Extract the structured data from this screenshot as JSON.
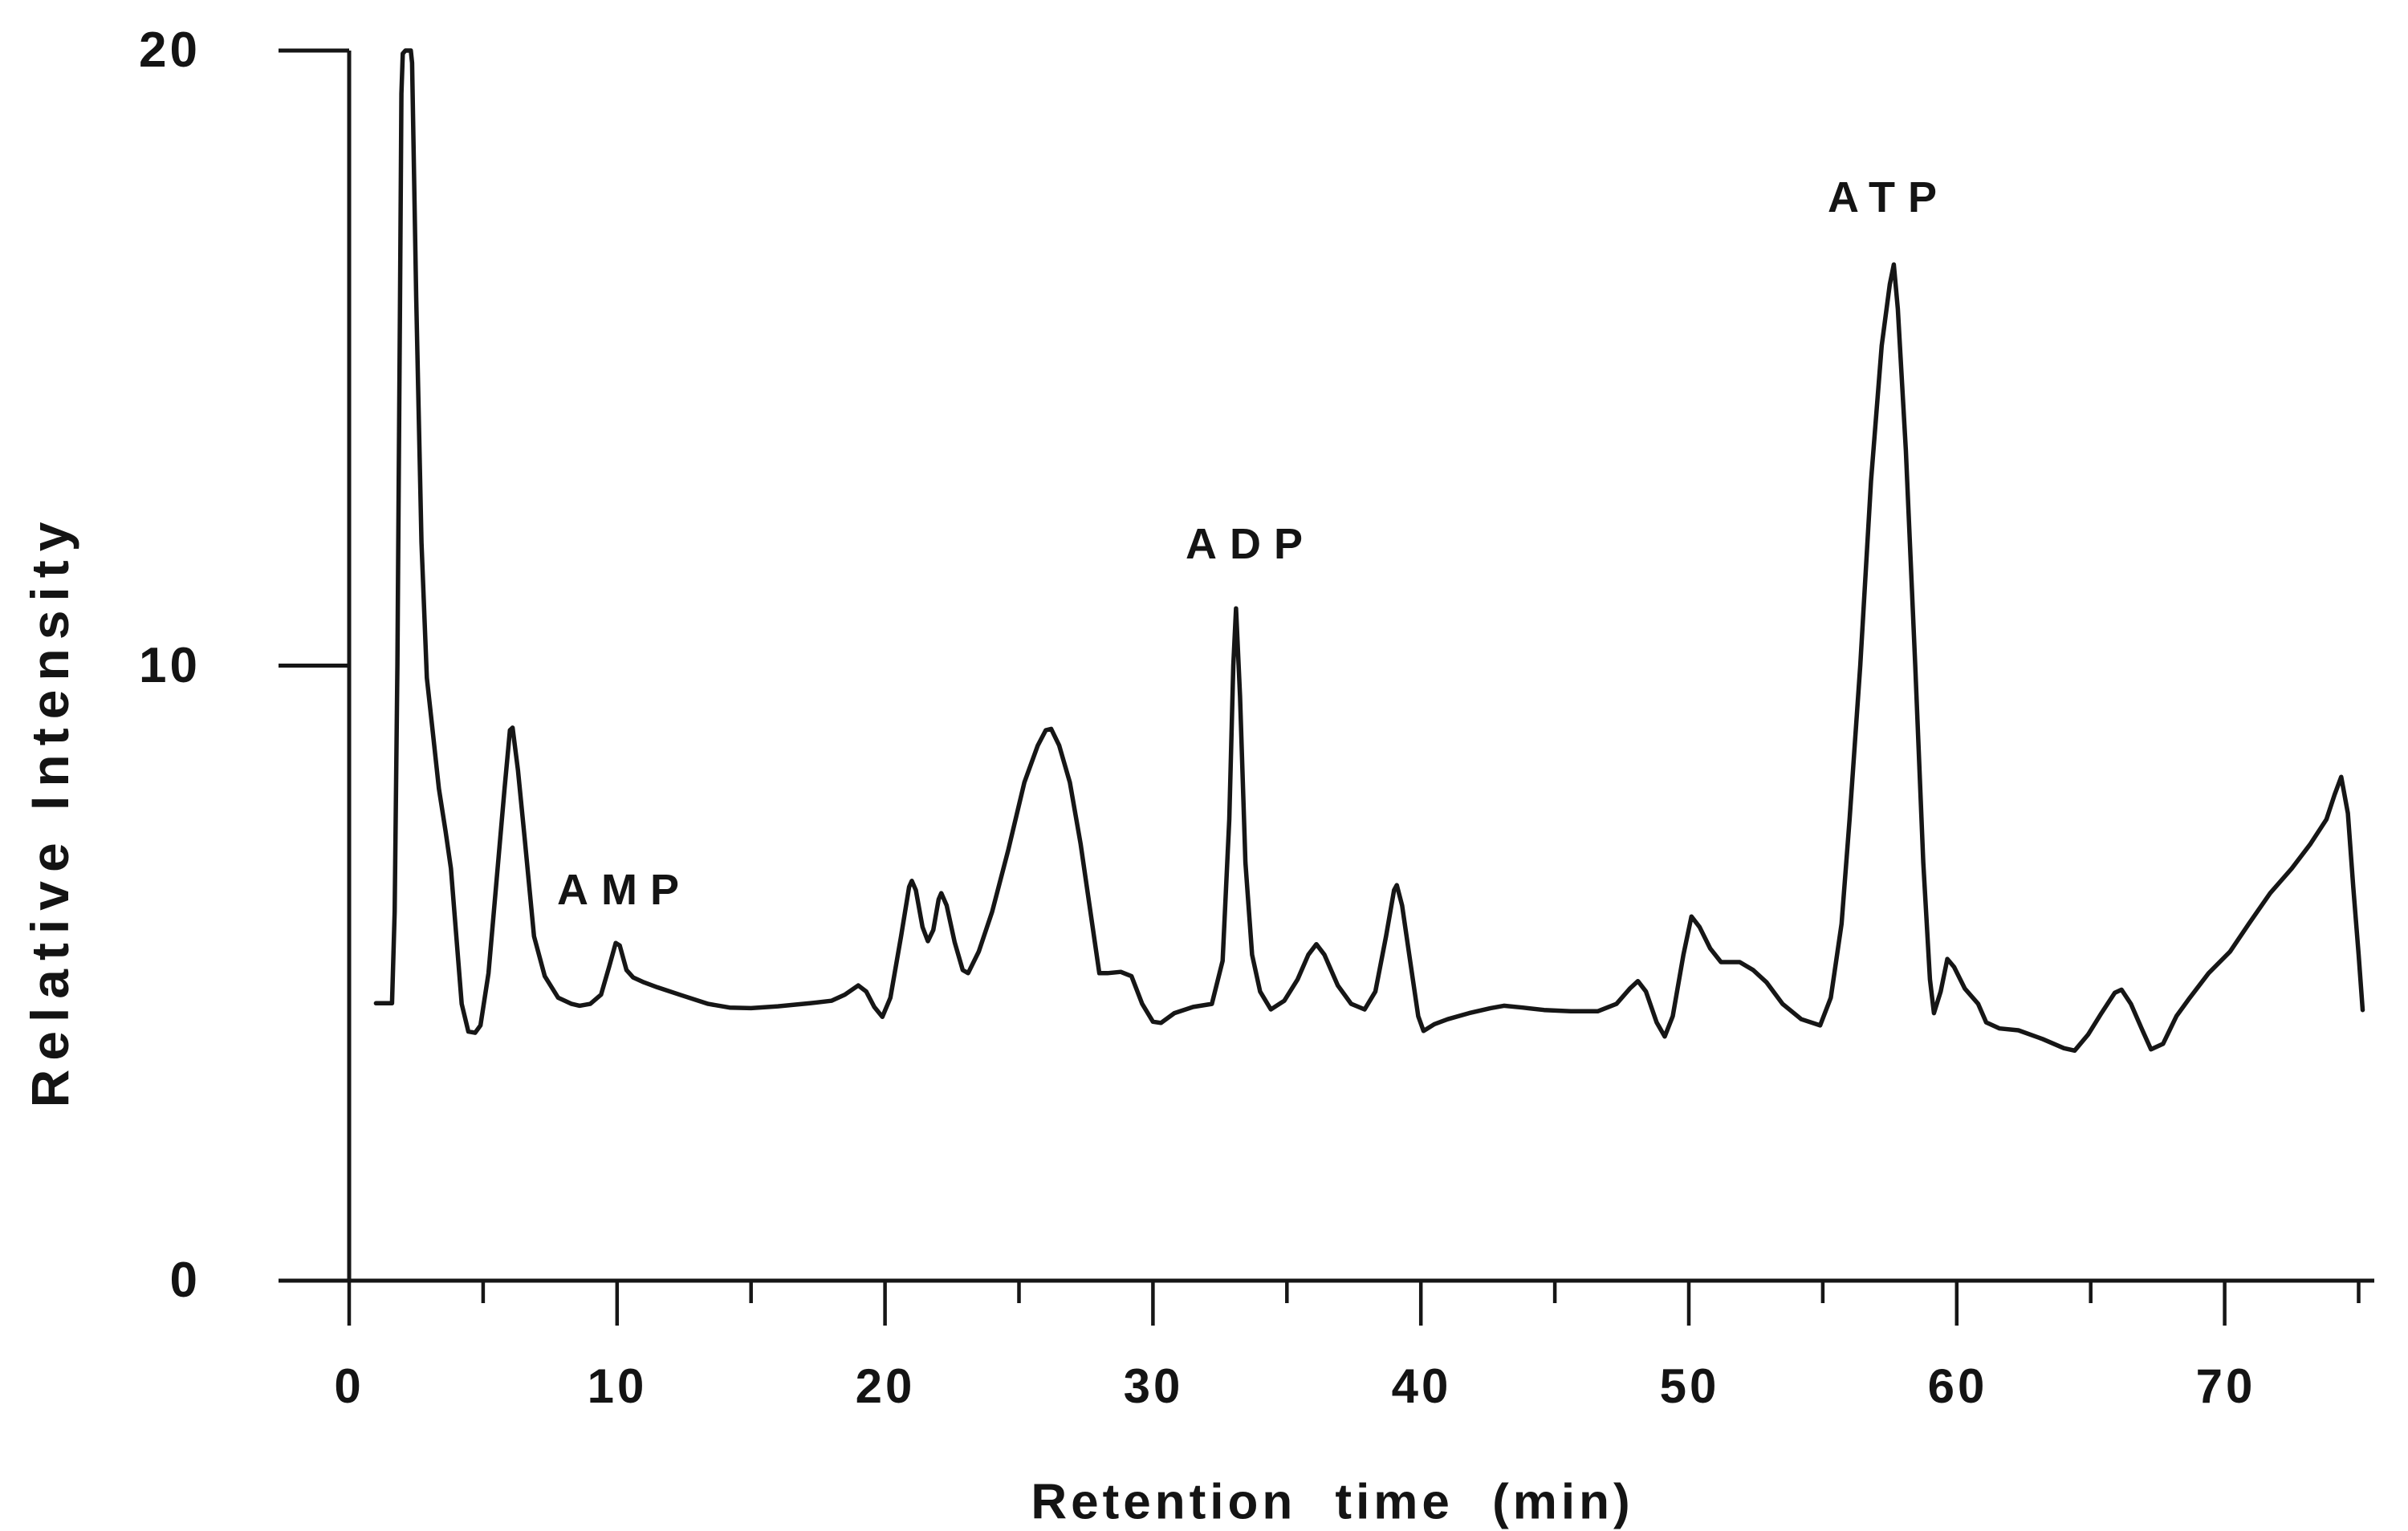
{
  "figure": {
    "background": "#ffffff",
    "ink": "#161616"
  },
  "y_axis": {
    "title": "Relative Intensity",
    "ticks": [
      {
        "value": 20,
        "label": "20"
      },
      {
        "value": 10,
        "label": "10"
      },
      {
        "value": 0,
        "label": "0"
      }
    ]
  },
  "x_axis": {
    "title": "Retention time (min)",
    "major_ticks": [
      {
        "value": 0,
        "label": "0"
      },
      {
        "value": 10,
        "label": "10"
      },
      {
        "value": 20,
        "label": "20"
      },
      {
        "value": 30,
        "label": "30"
      },
      {
        "value": 40,
        "label": "40"
      },
      {
        "value": 50,
        "label": "50"
      },
      {
        "value": 60,
        "label": "60"
      },
      {
        "value": 70,
        "label": "70"
      }
    ],
    "minor_ticks": [
      5,
      15,
      25,
      35,
      45,
      55,
      65,
      75
    ]
  },
  "peak_labels": [
    {
      "text": "AMP",
      "t": 10.3,
      "v": 6.35
    },
    {
      "text": "ADP",
      "t": 33.6,
      "v": 12.0
    },
    {
      "text": "ATP",
      "t": 57.5,
      "v": 17.6
    }
  ],
  "chart_data": {
    "type": "line",
    "title": "",
    "xlabel": "Retention time (min)",
    "ylabel": "Relative Intensity",
    "xlim": [
      0,
      75.6
    ],
    "ylim": [
      0,
      20
    ],
    "grid": false,
    "legend": "none",
    "annotations": [
      {
        "text": "AMP",
        "peak_time_min": 10.0,
        "peak_height": 5.5
      },
      {
        "text": "ADP",
        "peak_time_min": 33.1,
        "peak_height": 10.9
      },
      {
        "text": "ATP",
        "peak_time_min": 57.7,
        "peak_height": 16.5
      }
    ],
    "series": [
      {
        "name": "chromatogram trace",
        "points": [
          [
            1.0,
            4.51
          ],
          [
            1.6,
            4.51
          ],
          [
            1.7,
            6.0
          ],
          [
            1.8,
            10.0
          ],
          [
            1.9,
            16.0
          ],
          [
            1.95,
            19.3
          ],
          [
            2.0,
            19.95
          ],
          [
            2.1,
            20.0
          ],
          [
            2.3,
            20.0
          ],
          [
            2.35,
            19.8
          ],
          [
            2.5,
            16.0
          ],
          [
            2.7,
            12.0
          ],
          [
            2.9,
            9.8
          ],
          [
            3.1,
            9.0
          ],
          [
            3.35,
            8.0
          ],
          [
            3.6,
            7.3
          ],
          [
            3.8,
            6.7
          ],
          [
            4.0,
            5.6
          ],
          [
            4.2,
            4.5
          ],
          [
            4.45,
            4.05
          ],
          [
            4.7,
            4.03
          ],
          [
            4.9,
            4.15
          ],
          [
            5.2,
            5.0
          ],
          [
            5.5,
            6.5
          ],
          [
            5.8,
            8.0
          ],
          [
            6.0,
            8.95
          ],
          [
            6.1,
            8.99
          ],
          [
            6.3,
            8.3
          ],
          [
            6.55,
            7.2
          ],
          [
            6.9,
            5.6
          ],
          [
            7.3,
            4.95
          ],
          [
            7.8,
            4.6
          ],
          [
            8.3,
            4.5
          ],
          [
            8.6,
            4.47
          ],
          [
            9.0,
            4.5
          ],
          [
            9.4,
            4.65
          ],
          [
            9.7,
            5.1
          ],
          [
            9.95,
            5.49
          ],
          [
            10.1,
            5.45
          ],
          [
            10.35,
            5.05
          ],
          [
            10.6,
            4.93
          ],
          [
            11.0,
            4.85
          ],
          [
            11.5,
            4.77
          ],
          [
            12.4,
            4.64
          ],
          [
            13.4,
            4.5
          ],
          [
            14.2,
            4.44
          ],
          [
            15.0,
            4.43
          ],
          [
            16.0,
            4.46
          ],
          [
            17.2,
            4.51
          ],
          [
            18.0,
            4.55
          ],
          [
            18.5,
            4.65
          ],
          [
            19.0,
            4.8
          ],
          [
            19.3,
            4.7
          ],
          [
            19.6,
            4.45
          ],
          [
            19.9,
            4.29
          ],
          [
            20.2,
            4.6
          ],
          [
            20.6,
            5.6
          ],
          [
            20.9,
            6.4
          ],
          [
            21.0,
            6.5
          ],
          [
            21.15,
            6.35
          ],
          [
            21.4,
            5.75
          ],
          [
            21.6,
            5.52
          ],
          [
            21.8,
            5.7
          ],
          [
            22.0,
            6.2
          ],
          [
            22.1,
            6.3
          ],
          [
            22.3,
            6.1
          ],
          [
            22.6,
            5.5
          ],
          [
            22.9,
            5.05
          ],
          [
            23.1,
            5.0
          ],
          [
            23.5,
            5.35
          ],
          [
            24.0,
            6.0
          ],
          [
            24.6,
            7.0
          ],
          [
            25.2,
            8.1
          ],
          [
            25.7,
            8.7
          ],
          [
            26.0,
            8.95
          ],
          [
            26.2,
            8.97
          ],
          [
            26.5,
            8.7
          ],
          [
            26.9,
            8.1
          ],
          [
            27.3,
            7.1
          ],
          [
            27.7,
            5.9
          ],
          [
            28.0,
            5.0
          ],
          [
            28.3,
            5.0
          ],
          [
            28.8,
            5.02
          ],
          [
            29.2,
            4.95
          ],
          [
            29.6,
            4.5
          ],
          [
            30.0,
            4.21
          ],
          [
            30.3,
            4.19
          ],
          [
            30.8,
            4.35
          ],
          [
            31.5,
            4.45
          ],
          [
            32.2,
            4.5
          ],
          [
            32.6,
            5.2
          ],
          [
            32.85,
            7.5
          ],
          [
            33.0,
            10.0
          ],
          [
            33.1,
            10.93
          ],
          [
            33.25,
            9.5
          ],
          [
            33.45,
            6.8
          ],
          [
            33.7,
            5.3
          ],
          [
            34.0,
            4.7
          ],
          [
            34.4,
            4.41
          ],
          [
            34.9,
            4.55
          ],
          [
            35.4,
            4.9
          ],
          [
            35.8,
            5.3
          ],
          [
            36.1,
            5.47
          ],
          [
            36.4,
            5.3
          ],
          [
            36.9,
            4.8
          ],
          [
            37.4,
            4.5
          ],
          [
            37.9,
            4.41
          ],
          [
            38.3,
            4.7
          ],
          [
            38.7,
            5.6
          ],
          [
            39.0,
            6.35
          ],
          [
            39.1,
            6.43
          ],
          [
            39.3,
            6.1
          ],
          [
            39.6,
            5.2
          ],
          [
            39.9,
            4.3
          ],
          [
            40.1,
            4.06
          ],
          [
            40.5,
            4.17
          ],
          [
            41.0,
            4.25
          ],
          [
            41.8,
            4.35
          ],
          [
            42.6,
            4.43
          ],
          [
            43.1,
            4.47
          ],
          [
            43.8,
            4.44
          ],
          [
            44.6,
            4.4
          ],
          [
            45.6,
            4.38
          ],
          [
            46.6,
            4.38
          ],
          [
            47.3,
            4.5
          ],
          [
            47.8,
            4.75
          ],
          [
            48.1,
            4.87
          ],
          [
            48.4,
            4.7
          ],
          [
            48.8,
            4.2
          ],
          [
            49.1,
            3.97
          ],
          [
            49.4,
            4.3
          ],
          [
            49.8,
            5.3
          ],
          [
            50.1,
            5.92
          ],
          [
            50.4,
            5.75
          ],
          [
            50.8,
            5.4
          ],
          [
            51.2,
            5.18
          ],
          [
            51.9,
            5.18
          ],
          [
            52.4,
            5.05
          ],
          [
            52.9,
            4.85
          ],
          [
            53.5,
            4.5
          ],
          [
            54.2,
            4.25
          ],
          [
            54.9,
            4.15
          ],
          [
            55.3,
            4.6
          ],
          [
            55.7,
            5.8
          ],
          [
            56.0,
            7.5
          ],
          [
            56.4,
            10.0
          ],
          [
            56.8,
            13.0
          ],
          [
            57.2,
            15.2
          ],
          [
            57.5,
            16.2
          ],
          [
            57.65,
            16.52
          ],
          [
            57.8,
            15.8
          ],
          [
            58.1,
            13.5
          ],
          [
            58.45,
            10.0
          ],
          [
            58.75,
            6.8
          ],
          [
            59.0,
            4.9
          ],
          [
            59.15,
            4.35
          ],
          [
            59.4,
            4.7
          ],
          [
            59.65,
            5.23
          ],
          [
            59.9,
            5.1
          ],
          [
            60.3,
            4.75
          ],
          [
            60.8,
            4.5
          ],
          [
            61.1,
            4.2
          ],
          [
            61.6,
            4.1
          ],
          [
            62.3,
            4.07
          ],
          [
            63.2,
            3.93
          ],
          [
            64.0,
            3.78
          ],
          [
            64.4,
            3.74
          ],
          [
            64.9,
            4.0
          ],
          [
            65.4,
            4.35
          ],
          [
            65.9,
            4.68
          ],
          [
            66.15,
            4.73
          ],
          [
            66.5,
            4.5
          ],
          [
            66.9,
            4.1
          ],
          [
            67.25,
            3.76
          ],
          [
            67.7,
            3.85
          ],
          [
            68.2,
            4.3
          ],
          [
            68.7,
            4.6
          ],
          [
            69.4,
            5.0
          ],
          [
            70.2,
            5.35
          ],
          [
            70.9,
            5.8
          ],
          [
            71.7,
            6.3
          ],
          [
            72.5,
            6.7
          ],
          [
            73.2,
            7.1
          ],
          [
            73.8,
            7.5
          ],
          [
            74.1,
            7.9
          ],
          [
            74.35,
            8.19
          ],
          [
            74.6,
            7.6
          ],
          [
            74.8,
            6.4
          ],
          [
            75.0,
            5.3
          ],
          [
            75.15,
            4.4
          ]
        ]
      }
    ]
  }
}
